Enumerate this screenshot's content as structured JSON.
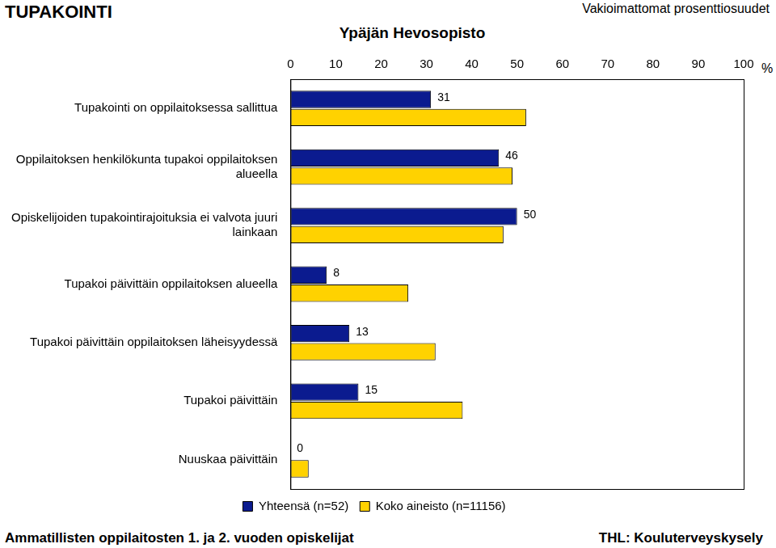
{
  "chart_data": {
    "type": "bar",
    "orientation": "horizontal",
    "title": "TUPAKOINTI",
    "subtitle": "Ypäjän Hevosopisto",
    "annotations": [
      "Vakioimattomat prosenttiosuudet",
      "Ammatillisten oppilaitosten 1. ja 2. vuoden opiskelijat",
      "THL: Kouluterveyskysely"
    ],
    "x_label": "%",
    "categories": [
      [
        "Tupakointi on oppilaitoksessa sallittua"
      ],
      [
        "Oppilaitoksen henkilökunta tupakoi oppilaitoksen",
        "alueella"
      ],
      [
        "Opiskelijoiden tupakointirajoituksia ei valvota juuri",
        "lainkaan"
      ],
      [
        "Tupakoi päivittäin oppilaitoksen alueella"
      ],
      [
        "Tupakoi päivittäin oppilaitoksen läheisyydessä"
      ],
      [
        "Tupakoi päivittäin"
      ],
      [
        "Nuuskaa päivittäin"
      ]
    ],
    "series": [
      {
        "name": "Yhteensä (n=52)",
        "color": "#0b1b8f",
        "values": [
          31,
          46,
          50,
          8,
          13,
          15,
          0
        ],
        "data_labels": true
      },
      {
        "name": "Koko aineisto (n=11156)",
        "color": "#ffd200",
        "values": [
          52,
          49,
          47,
          26,
          32,
          38,
          4
        ]
      }
    ],
    "xlim": [
      0,
      100
    ],
    "xticks": [
      0,
      10,
      20,
      30,
      40,
      50,
      60,
      70,
      80,
      90,
      100
    ],
    "grid": false,
    "legend": "bottom"
  }
}
